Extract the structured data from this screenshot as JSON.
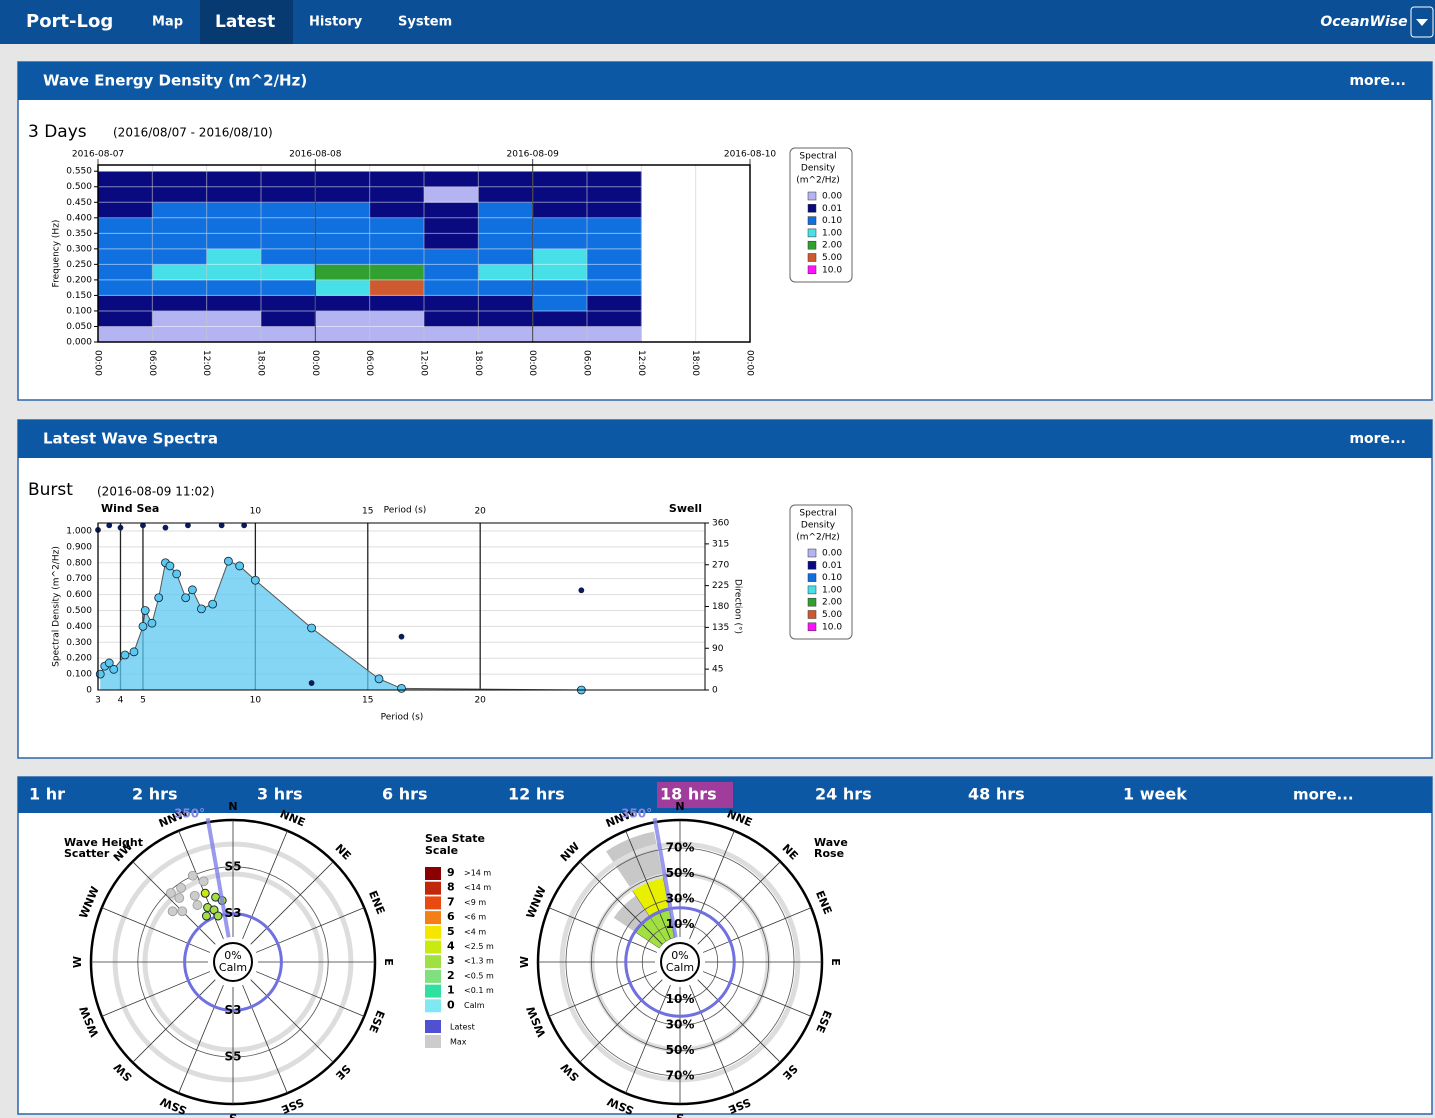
{
  "nav": {
    "brand": "Port-Log",
    "items": [
      "Map",
      "Latest",
      "History",
      "System"
    ],
    "selected": "Latest",
    "logo": "OceanWise"
  },
  "panels": [
    {
      "title": "Wave Energy Density (m^2/Hz)",
      "more": "more..."
    },
    {
      "title": "Latest Wave Spectra",
      "more": "more..."
    }
  ],
  "tabs": {
    "items": [
      "1 hr",
      "2 hrs",
      "3 hrs",
      "6 hrs",
      "12 hrs",
      "18 hrs",
      "24 hrs",
      "48 hrs",
      "1 week"
    ],
    "selected": "18 hrs",
    "more": "more..."
  },
  "legend": {
    "title": [
      "Spectral",
      "Density",
      "(m^2/Hz)"
    ],
    "levels": [
      {
        "value": 0,
        "label": "0.00",
        "color": "#b4b4f2"
      },
      {
        "value": 0.01,
        "label": "0.01",
        "color": "#0a0a80"
      },
      {
        "value": 0.1,
        "label": "0.10",
        "color": "#1070e0"
      },
      {
        "value": 1,
        "label": "1.00",
        "color": "#48e0e8"
      },
      {
        "value": 2,
        "label": "2.00",
        "color": "#30a030"
      },
      {
        "value": 5,
        "label": "5.00",
        "color": "#d05a30"
      },
      {
        "value": 10,
        "label": "10.0",
        "color": "#ff10ff"
      }
    ]
  },
  "sea_state_scale": {
    "title": [
      "Sea State",
      "Scale"
    ],
    "levels": [
      {
        "value": 9,
        "label": ">14 m",
        "color": "#8b0000"
      },
      {
        "value": 8,
        "label": "<14 m",
        "color": "#c0280a"
      },
      {
        "value": 7,
        "label": "<9 m",
        "color": "#e84a10"
      },
      {
        "value": 6,
        "label": "<6 m",
        "color": "#f57f17"
      },
      {
        "value": 5,
        "label": "<4 m",
        "color": "#f5e600"
      },
      {
        "value": 4,
        "label": "<2.5 m",
        "color": "#c8ea10"
      },
      {
        "value": 3,
        "label": "<1.3 m",
        "color": "#a0e040"
      },
      {
        "value": 2,
        "label": "<0.5 m",
        "color": "#80e080"
      },
      {
        "value": 1,
        "label": "<0.1 m",
        "color": "#30e0a0"
      },
      {
        "value": 0,
        "label": "Calm",
        "color": "#80e8f0"
      }
    ],
    "latest": {
      "label": "Latest",
      "color": "#5050d0"
    },
    "max": {
      "label": "Max",
      "color": "#cccccc"
    }
  },
  "chart_data": [
    {
      "type": "heatmap",
      "heading": "3 Days",
      "subtitle": "(2016/08/07 - 2016/08/10)",
      "dates": [
        "2016-08-07",
        "2016-08-08",
        "2016-08-09",
        "2016-08-10"
      ],
      "x": [
        "00:00",
        "06:00",
        "12:00",
        "18:00",
        "00:00",
        "06:00",
        "12:00",
        "18:00",
        "00:00",
        "06:00",
        "12:00",
        "18:00",
        "00:00"
      ],
      "ylabel": "Frequency (Hz)",
      "ylim": [
        0,
        0.57
      ],
      "yticks": [
        {
          "value": 0,
          "label": "0.000"
        },
        {
          "value": 0.05,
          "label": "0.050"
        },
        {
          "value": 0.1,
          "label": "0.100"
        },
        {
          "value": 0.15,
          "label": "0.150"
        },
        {
          "value": 0.2,
          "label": "0.200"
        },
        {
          "value": 0.25,
          "label": "0.250"
        },
        {
          "value": 0.3,
          "label": "0.300"
        },
        {
          "value": 0.35,
          "label": "0.350"
        },
        {
          "value": 0.4,
          "label": "0.400"
        },
        {
          "value": 0.45,
          "label": "0.450"
        },
        {
          "value": 0.5,
          "label": "0.500"
        },
        {
          "value": 0.55,
          "label": "0.550"
        }
      ],
      "grid": true,
      "values": [
        [
          0,
          0,
          0,
          0,
          0,
          0,
          0,
          0,
          0,
          0
        ],
        [
          0.01,
          0,
          0,
          0.01,
          0,
          0,
          0.01,
          0.01,
          0.01,
          0.01
        ],
        [
          0.01,
          0.01,
          0.01,
          0.01,
          0.01,
          0.01,
          0.01,
          0.01,
          0.1,
          0.01
        ],
        [
          0.1,
          0.1,
          0.1,
          0.1,
          1,
          5,
          0.1,
          0.1,
          0.1,
          0.1
        ],
        [
          0.1,
          1,
          1,
          1,
          2,
          2,
          0.1,
          1,
          1,
          0.1
        ],
        [
          0.1,
          0.1,
          1,
          0.1,
          0.1,
          0.1,
          0.1,
          0.1,
          1,
          0.1
        ],
        [
          0.1,
          0.1,
          0.1,
          0.1,
          0.1,
          0.1,
          0.01,
          0.1,
          0.1,
          0.1
        ],
        [
          0.1,
          0.1,
          0.1,
          0.1,
          0.1,
          0.1,
          0.01,
          0.1,
          0.1,
          0.1
        ],
        [
          0.01,
          0.1,
          0.1,
          0.1,
          0.1,
          0.01,
          0.01,
          0.1,
          0.01,
          0.01
        ],
        [
          0.01,
          0.01,
          0.01,
          0.01,
          0.01,
          0.01,
          0,
          0.01,
          0.01,
          0.01
        ],
        [
          0.01,
          0.01,
          0.01,
          0.01,
          0.01,
          0.01,
          0.01,
          0.01,
          0.01,
          0.01
        ]
      ]
    },
    {
      "type": "spectrum",
      "heading": "Burst",
      "subtitle": "(2016-08-09 11:02)",
      "xlabel": "Period (s)",
      "ylabel": "Spectral Density (m^2/Hz)",
      "y2label": "Direction (°)",
      "annotations": [
        "Wind Sea",
        "Swell"
      ],
      "xlim": [
        3,
        30
      ],
      "xticks": [
        3,
        4,
        5,
        10,
        15,
        20
      ],
      "xticks_top": [
        10,
        15,
        20
      ],
      "ylim": [
        0,
        1.05
      ],
      "yticks": [
        0,
        {
          "value": 0.1,
          "label": "0.100"
        },
        {
          "value": 0.2,
          "label": "0.200"
        },
        {
          "value": 0.3,
          "label": "0.300"
        },
        {
          "value": 0.4,
          "label": "0.400"
        },
        {
          "value": 0.5,
          "label": "0.500"
        },
        {
          "value": 0.6,
          "label": "0.600"
        },
        {
          "value": 0.7,
          "label": "0.700"
        },
        {
          "value": 0.8,
          "label": "0.800"
        },
        {
          "value": 0.9,
          "label": "0.900"
        },
        {
          "value": 1,
          "label": "1.000"
        }
      ],
      "y2lim": [
        0,
        360
      ],
      "y2ticks": [
        0,
        45,
        90,
        135,
        180,
        225,
        270,
        315,
        360
      ],
      "grid": true,
      "series": [
        {
          "color": "#5bc8f0",
          "x": [
            3.1,
            3.3,
            3.5,
            3.7,
            4.2,
            4.6,
            5,
            5.1,
            5.4,
            5.7,
            6,
            6.2,
            6.5,
            6.9,
            7.2,
            7.6,
            8.1,
            8.8,
            9.3,
            10,
            12.5,
            15.5,
            16.5,
            24.5
          ],
          "values": [
            0.1,
            0.15,
            0.17,
            0.13,
            0.22,
            0.24,
            0.4,
            0.5,
            0.42,
            0.58,
            0.8,
            0.78,
            0.73,
            0.58,
            0.63,
            0.51,
            0.54,
            0.81,
            0.78,
            0.69,
            0.39,
            0.07,
            0.01,
            0
          ]
        },
        {
          "color": "#0a1a6a",
          "axis": "y2",
          "x": [
            3,
            3.5,
            4,
            5,
            6,
            7,
            8.5,
            9.5,
            12.5,
            16.5,
            24.5
          ],
          "values": [
            345,
            355,
            350,
            355,
            350,
            355,
            355,
            355,
            15,
            115,
            215
          ]
        }
      ]
    },
    {
      "type": "rose-scatter",
      "title": [
        "Wave Height",
        "Scatter"
      ],
      "categories": [
        "N",
        "NNE",
        "NE",
        "ENE",
        "E",
        "ESE",
        "SE",
        "SSE",
        "S",
        "SSW",
        "SW",
        "WSW",
        "W",
        "WNW",
        "NW",
        "NNW"
      ],
      "center": [
        "0%",
        "Calm"
      ],
      "rlim": [
        2,
        7
      ],
      "rticks": [
        {
          "value": 3,
          "label": "S3"
        },
        {
          "value": 5,
          "label": "S5"
        }
      ],
      "latest_direction": {
        "value": 350,
        "label": "350°"
      },
      "latest_ring": 3,
      "max_points": {
        "direction": [
          320,
          325,
          330,
          335,
          315,
          310,
          340,
          328,
          318
        ],
        "values": [
          4.5,
          4.8,
          4.2,
          5.0,
          4.0,
          4.3,
          4.6,
          3.8,
          4.9
        ]
      },
      "latest_points": {
        "direction": [
          335,
          340,
          345,
          330,
          350,
          338,
          342
        ],
        "values": [
          3.5,
          3.3,
          3.8,
          3.2,
          3.6,
          4.1,
          3.0
        ]
      }
    },
    {
      "type": "rose",
      "title": [
        "Wave",
        "Rose"
      ],
      "categories": [
        "N",
        "NNE",
        "NE",
        "ENE",
        "E",
        "ESE",
        "SE",
        "SSE",
        "S",
        "SSW",
        "SW",
        "WSW",
        "W",
        "WNW",
        "NW",
        "NNW"
      ],
      "center": [
        "0%",
        "Calm"
      ],
      "rlim": [
        0,
        92
      ],
      "rticks": [
        {
          "value": 10,
          "label": "10%"
        },
        {
          "value": 30,
          "label": "30%"
        },
        {
          "value": 50,
          "label": "50%"
        },
        {
          "value": 70,
          "label": "70%"
        }
      ],
      "latest_direction": {
        "value": 350,
        "label": "350°"
      },
      "latest_ring": 23,
      "max": {
        "color": "#c8c8c8",
        "values": [
          0,
          0,
          0,
          0,
          0,
          0,
          0,
          0,
          0,
          0,
          0,
          0,
          0,
          0,
          43,
          85
        ]
      },
      "series": [
        {
          "color": "#a0e040",
          "values": [
            0,
            0,
            0,
            0,
            0,
            0,
            0,
            0,
            0,
            0,
            0,
            0,
            0,
            0,
            22,
            22
          ]
        },
        {
          "color": "#e8f000",
          "values": [
            0,
            0,
            0,
            0,
            0,
            0,
            0,
            0,
            0,
            0,
            0,
            0,
            0,
            0,
            0,
            28
          ]
        }
      ]
    }
  ]
}
